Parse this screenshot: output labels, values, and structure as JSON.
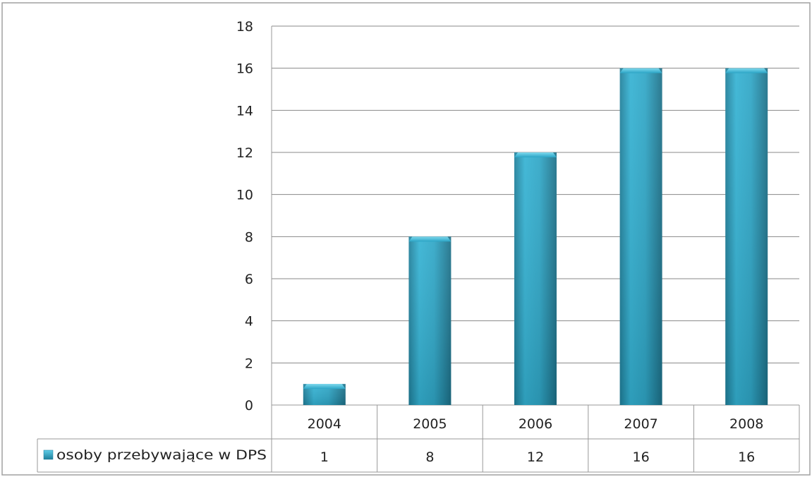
{
  "chart_data": {
    "type": "bar",
    "categories": [
      "2004",
      "2005",
      "2006",
      "2007",
      "2008"
    ],
    "series": [
      {
        "name": "osoby przebywające w DPS",
        "values": [
          1,
          8,
          12,
          16,
          16
        ]
      }
    ],
    "ylim": [
      0,
      18
    ],
    "yticks": [
      "0",
      "2",
      "4",
      "6",
      "8",
      "10",
      "12",
      "14",
      "16",
      "18"
    ],
    "grid": true,
    "legend_placement": "data-table-row",
    "data_table": true,
    "colors": {
      "bar": "#31a9c9",
      "bar_top": "#48c2e0",
      "grid": "#888888",
      "frame": "#999999"
    }
  }
}
